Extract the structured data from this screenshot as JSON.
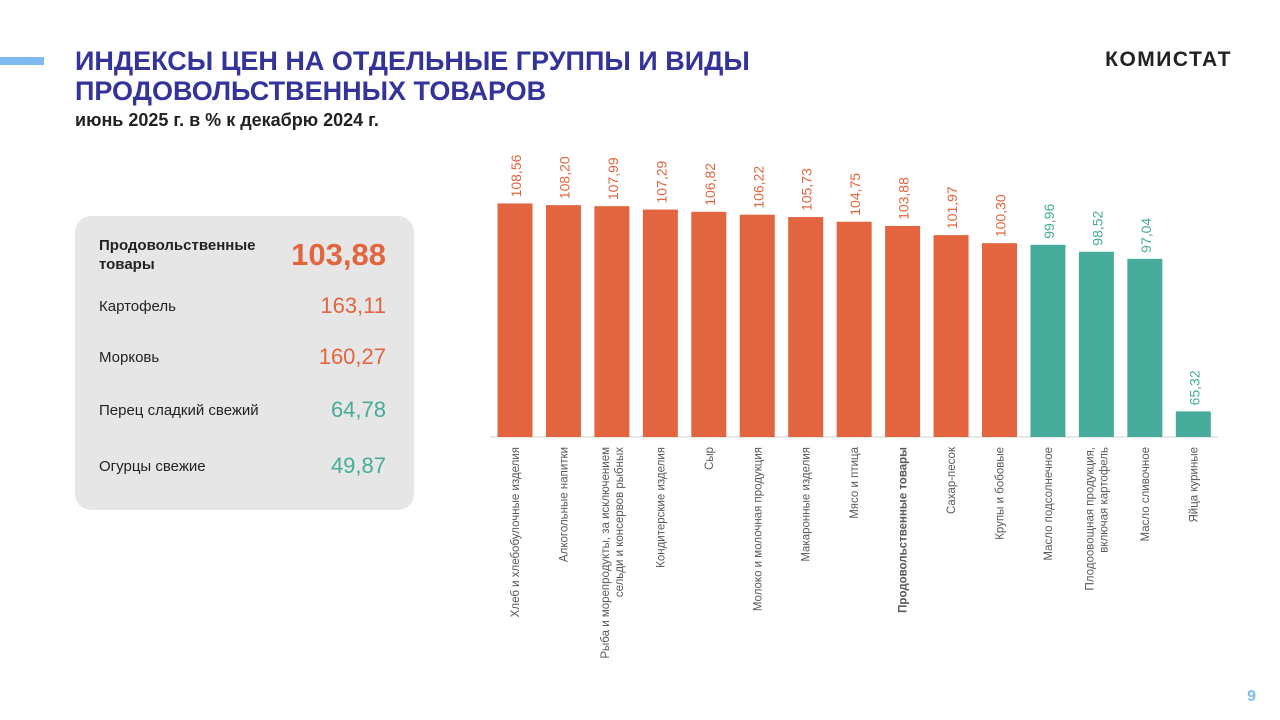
{
  "header": {
    "title": "ИНДЕКСЫ ЦЕН НА ОТДЕЛЬНЫЕ  ГРУППЫ И ВИДЫ ПРОДОВОЛЬСТВЕННЫХ  ТОВАРОВ",
    "subtitle": "июнь 2025 г. в % к декабрю 2024 г.",
    "logo": "КОМИСТАТ"
  },
  "panel": {
    "items": [
      {
        "label": "Продовольственные товары",
        "value": "103,88",
        "color": "#e2653f"
      },
      {
        "label": "Картофель",
        "value": "163,11",
        "color": "#e2653f"
      },
      {
        "label": "Морковь",
        "value": "160,27",
        "color": "#e2653f"
      },
      {
        "label": "Перец сладкий  свежий",
        "value": "64,78",
        "color": "#46ab98"
      },
      {
        "label": "Огурцы свежие",
        "value": "49,87",
        "color": "#46ab98"
      }
    ]
  },
  "page_number": "9",
  "chart_data": {
    "type": "bar",
    "title": "",
    "xlabel": "",
    "ylabel": "",
    "ylim": [
      60,
      110
    ],
    "grid": false,
    "colors": {
      "above": "#e2653f",
      "below": "#46ab98"
    },
    "categories": [
      "Хлеб  и  хлебобулочные   изделия",
      "Алкогольные  напитки",
      "Рыба и морепродукты, за исключением\nсельди и консервов рыбных",
      "Кондитерские  изделия",
      "Сыр",
      "Молоко  и  молочная  продукция",
      "Макаронные  изделия",
      "Мясо и птица",
      "Продовольственные товары",
      "Сахар-песок",
      "Крупы и бобовые",
      "Масло  подсолнечное",
      "Плодоовощная  продукция,\nвключая картофель",
      "Масло  сливочное",
      "Яйца куриные"
    ],
    "values": [
      108.56,
      108.2,
      107.99,
      107.29,
      106.82,
      106.22,
      105.73,
      104.75,
      103.88,
      101.97,
      100.3,
      99.96,
      98.52,
      97.04,
      65.32
    ],
    "labels": [
      "108,56",
      "108,20",
      "107,99",
      "107,29",
      "106,82",
      "106,22",
      "105,73",
      "104,75",
      "103,88",
      "101,97",
      "100,30",
      "99,96",
      "98,52",
      "97,04",
      "65,32"
    ],
    "highlight_index": 8
  }
}
